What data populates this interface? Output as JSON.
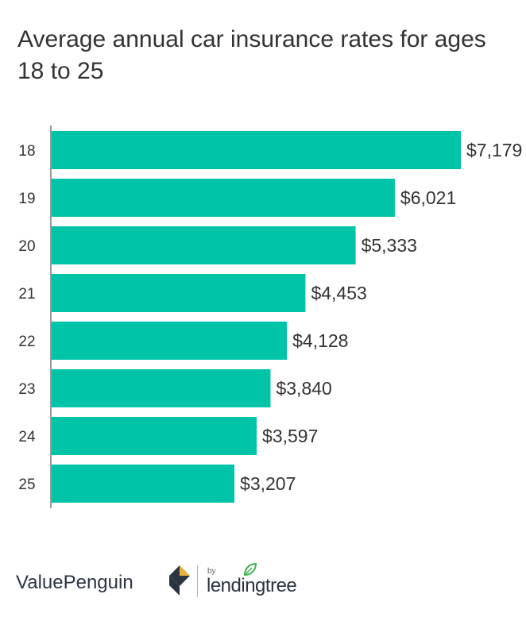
{
  "chart_data": {
    "type": "bar",
    "orientation": "horizontal",
    "title": "Average annual car insurance rates for ages 18 to 25",
    "categories": [
      "18",
      "19",
      "20",
      "21",
      "22",
      "23",
      "24",
      "25"
    ],
    "values": [
      7179,
      6021,
      5333,
      4453,
      4128,
      3840,
      3597,
      3207
    ],
    "value_labels": [
      "$7,179",
      "$6,021",
      "$5,333",
      "$4,453",
      "$4,128",
      "$3,840",
      "$3,597",
      "$3,207"
    ],
    "xlabel": "",
    "ylabel": "",
    "xlim": [
      0,
      7179
    ],
    "grid": false,
    "bar_color": "#00c4a7"
  },
  "footer": {
    "brand": "ValuePenguin",
    "by": "by",
    "partner": "lendingtree"
  },
  "colors": {
    "text": "#333333",
    "logo_navy": "#2b3542",
    "logo_gold": "#e8b23a",
    "leaf_green": "#3fb34f"
  },
  "icons": {
    "brand_logo": "valuepenguin-logo-icon",
    "partner_logo": "lendingtree-leaf-icon"
  }
}
